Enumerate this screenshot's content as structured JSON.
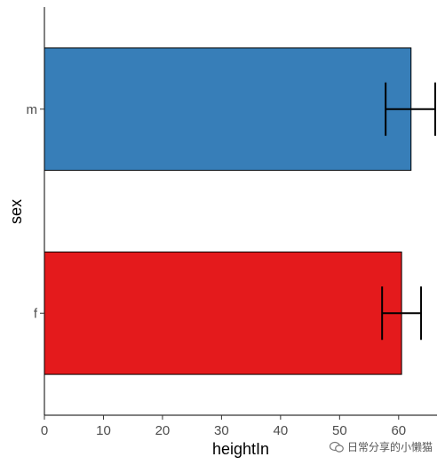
{
  "chart_data": {
    "type": "bar",
    "orientation": "horizontal",
    "categories": [
      "f",
      "m"
    ],
    "values": [
      60.5,
      62.1
    ],
    "error_low": [
      57.2,
      57.8
    ],
    "error_high": [
      63.8,
      66.2
    ],
    "bar_colors": [
      "#e41a1c",
      "#377eb8"
    ],
    "xlabel": "heightIn",
    "ylabel": "sex",
    "xlim": [
      0,
      66.5
    ],
    "xticks": [
      0,
      10,
      20,
      30,
      40,
      50,
      60
    ],
    "grid": false,
    "legend": "none"
  },
  "watermark": {
    "text": "日常分享的小懒猫"
  }
}
